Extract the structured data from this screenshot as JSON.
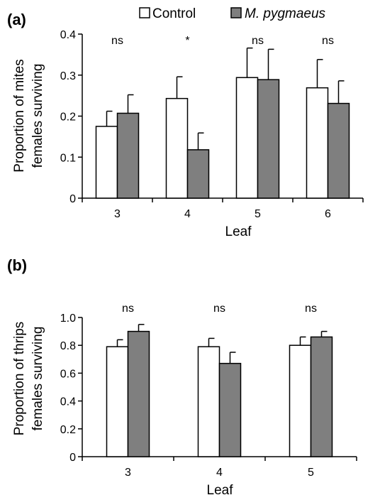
{
  "legend": {
    "items": [
      {
        "label": "Control",
        "color": "#ffffff"
      },
      {
        "label": "M. pygmaeus",
        "color": "#7f7f7f"
      }
    ]
  },
  "chart_data": [
    {
      "type": "bar",
      "panel_label": "(a)",
      "ylabel_line1": "Proportion of mites",
      "ylabel_line2": "females surviving",
      "xlabel": "Leaf",
      "categories": [
        "3",
        "4",
        "5",
        "6"
      ],
      "ylim": [
        0,
        0.4
      ],
      "yticks": [
        "0",
        "0.1",
        "0.2",
        "0.3",
        "0.4"
      ],
      "series": [
        {
          "name": "Control",
          "color": "#ffffff",
          "values": [
            0.175,
            0.243,
            0.294,
            0.269
          ],
          "errors": [
            0.037,
            0.053,
            0.072,
            0.069
          ]
        },
        {
          "name": "M. pygmaeus",
          "color": "#7f7f7f",
          "values": [
            0.207,
            0.118,
            0.289,
            0.231
          ],
          "errors": [
            0.045,
            0.041,
            0.074,
            0.055
          ]
        }
      ],
      "significance": [
        "ns",
        "*",
        "ns",
        "ns"
      ]
    },
    {
      "type": "bar",
      "panel_label": "(b)",
      "ylabel_line1": "Proportion of thrips",
      "ylabel_line2": "females surviving",
      "xlabel": "Leaf",
      "categories": [
        "3",
        "4",
        "5"
      ],
      "ylim": [
        0,
        1.0
      ],
      "yticks": [
        "0",
        "0.2",
        "0.4",
        "0.6",
        "0.8",
        "1.0"
      ],
      "series": [
        {
          "name": "Control",
          "color": "#ffffff",
          "values": [
            0.79,
            0.79,
            0.8
          ],
          "errors": [
            0.05,
            0.06,
            0.06
          ]
        },
        {
          "name": "M. pygmaeus",
          "color": "#7f7f7f",
          "values": [
            0.9,
            0.67,
            0.86
          ],
          "errors": [
            0.05,
            0.08,
            0.04
          ]
        }
      ],
      "significance": [
        "ns",
        "ns",
        "ns"
      ]
    }
  ]
}
